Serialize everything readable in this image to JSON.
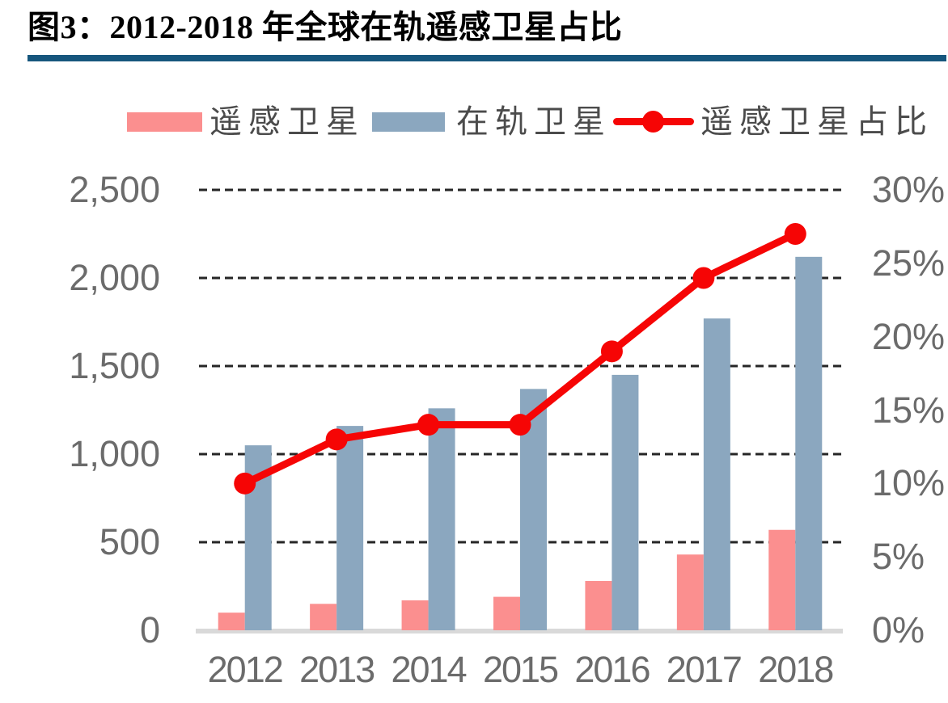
{
  "header": {
    "title": "图3：2012-2018 年全球在轨遥感卫星占比"
  },
  "legend": {
    "items": [
      {
        "label": "遥感卫星",
        "marker": "bar-swatch",
        "color": "#FB8F8F"
      },
      {
        "label": "在轨卫星",
        "marker": "bar-swatch",
        "color": "#8BA7BF"
      },
      {
        "label": "遥感卫星占比",
        "marker": "line-marker",
        "color": "#F60505"
      }
    ]
  },
  "chart_data": {
    "type": "combo",
    "categories": [
      "2012",
      "2013",
      "2014",
      "2015",
      "2016",
      "2017",
      "2018"
    ],
    "series": [
      {
        "name": "遥感卫星",
        "type": "bar",
        "axis": "left",
        "color": "#FB8F8F",
        "values": [
          100,
          150,
          170,
          190,
          280,
          430,
          570
        ]
      },
      {
        "name": "在轨卫星",
        "type": "bar",
        "axis": "left",
        "color": "#8BA7BF",
        "values": [
          1050,
          1160,
          1260,
          1370,
          1450,
          1770,
          2120
        ]
      },
      {
        "name": "遥感卫星占比",
        "type": "line",
        "axis": "right",
        "color": "#F60505",
        "values": [
          10,
          13,
          14,
          14,
          19,
          24,
          27
        ],
        "unit": "%"
      }
    ],
    "left_axis": {
      "min": 0,
      "max": 2500,
      "step": 500,
      "ticks": [
        "0",
        "500",
        "1,000",
        "1,500",
        "2,000",
        "2,500"
      ]
    },
    "right_axis": {
      "min": 0,
      "max": 30,
      "step": 5,
      "ticks": [
        "0%",
        "5%",
        "10%",
        "15%",
        "20%",
        "25%",
        "30%"
      ]
    },
    "grid": "horizontal-dashed",
    "legend_position": "top"
  },
  "colors": {
    "title_rule": "#16567D",
    "gridline": "#262626",
    "baseline": "#D9D9D9",
    "axis_text": "#6B6B6B",
    "legend_text": "#4B4B4B",
    "background": "#FFFFFF"
  }
}
